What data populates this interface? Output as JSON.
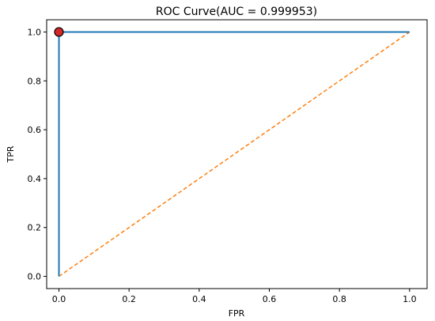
{
  "chart_data": {
    "type": "line",
    "title": "ROC Curve(AUC = 0.999953)",
    "xlabel": "FPR",
    "ylabel": "TPR",
    "xlim": [
      -0.035,
      1.05
    ],
    "ylim": [
      -0.05,
      1.05
    ],
    "xticks": [
      0.0,
      0.2,
      0.4,
      0.6,
      0.8,
      1.0
    ],
    "yticks": [
      0.0,
      0.2,
      0.4,
      0.6,
      0.8,
      1.0
    ],
    "xtick_labels": [
      "0.0",
      "0.2",
      "0.4",
      "0.6",
      "0.8",
      "1.0"
    ],
    "ytick_labels": [
      "0.0",
      "0.2",
      "0.4",
      "0.6",
      "0.8",
      "1.0"
    ],
    "grid": false,
    "series": [
      {
        "style": "solid",
        "color": "#1f77b4",
        "x": [
          0.0,
          0.0,
          0.0,
          1.0
        ],
        "y": [
          0.0,
          0.98,
          1.0,
          1.0
        ]
      },
      {
        "style": "dashed",
        "color": "#ff7f0e",
        "x": [
          0.0,
          1.0
        ],
        "y": [
          0.0,
          1.0
        ]
      }
    ],
    "marker": {
      "x": 0.0,
      "y": 1.0,
      "fill": "#d62728",
      "edge": "#000000"
    }
  }
}
